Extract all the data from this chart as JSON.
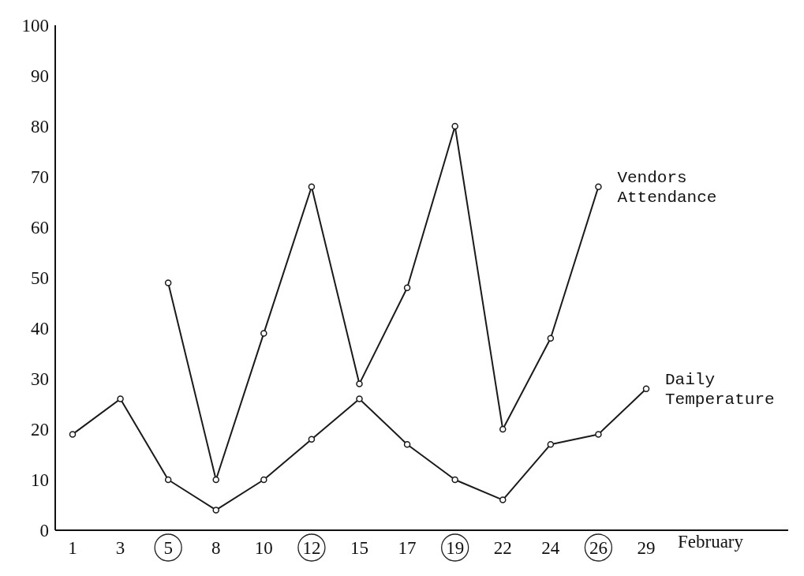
{
  "chart_data": {
    "type": "line",
    "xlabel": "February",
    "categories": [
      "1",
      "3",
      "5",
      "8",
      "10",
      "12",
      "15",
      "17",
      "19",
      "22",
      "24",
      "26",
      "29"
    ],
    "series": [
      {
        "name": "Vendors Attendance",
        "color": "#1a1a1a",
        "values": [
          null,
          null,
          49,
          10,
          39,
          68,
          29,
          48,
          80,
          20,
          38,
          68,
          null
        ]
      },
      {
        "name": "Daily Temperature",
        "color": "#1a1a1a",
        "values": [
          19,
          26,
          10,
          4,
          10,
          18,
          26,
          17,
          10,
          6,
          17,
          19,
          28
        ]
      }
    ],
    "ylim": [
      0,
      100
    ],
    "yticks": [
      0,
      10,
      20,
      30,
      40,
      50,
      60,
      70,
      80,
      90,
      100
    ],
    "grid": false,
    "legend": false,
    "marker": "circle",
    "line_style": "solid"
  }
}
